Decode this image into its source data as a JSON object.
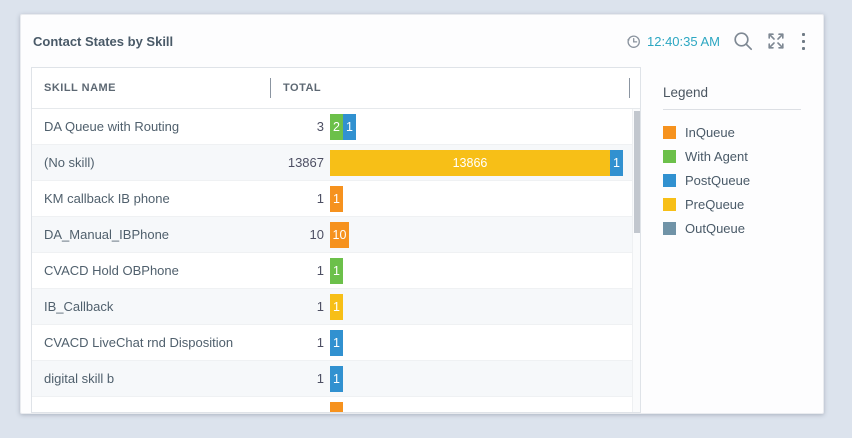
{
  "widget": {
    "title": "Contact States by Skill",
    "timestamp": "12:40:35 AM",
    "timestamp_color": "#2da7c2",
    "icons": {
      "clock": "clock-history-icon",
      "search": "search-icon",
      "expand": "fullscreen-icon",
      "menu": "kebab-menu-icon"
    }
  },
  "table": {
    "columns": [
      "SKILL NAME",
      "TOTAL"
    ],
    "rows": [
      {
        "skill": "DA Queue with Routing",
        "total": "3",
        "segments": [
          {
            "state": "With Agent",
            "value": "2"
          },
          {
            "state": "PostQueue",
            "value": "1"
          }
        ]
      },
      {
        "skill": "(No skill)",
        "total": "13867",
        "segments": [
          {
            "state": "PreQueue",
            "value": "13866"
          },
          {
            "state": "PostQueue",
            "value": "1"
          }
        ]
      },
      {
        "skill": "KM callback IB phone",
        "total": "1",
        "segments": [
          {
            "state": "InQueue",
            "value": "1"
          }
        ]
      },
      {
        "skill": "DA_Manual_IBPhone",
        "total": "10",
        "segments": [
          {
            "state": "InQueue",
            "value": "10"
          }
        ]
      },
      {
        "skill": "CVACD Hold OBPhone",
        "total": "1",
        "segments": [
          {
            "state": "With Agent",
            "value": "1"
          }
        ]
      },
      {
        "skill": "IB_Callback",
        "total": "1",
        "segments": [
          {
            "state": "PreQueue",
            "value": "1"
          }
        ]
      },
      {
        "skill": "CVACD LiveChat rnd Disposition",
        "total": "1",
        "segments": [
          {
            "state": "PostQueue",
            "value": "1"
          }
        ]
      },
      {
        "skill": "digital skill b",
        "total": "1",
        "segments": [
          {
            "state": "PostQueue",
            "value": "1"
          }
        ]
      },
      {
        "skill": "",
        "total": "",
        "segments": [
          {
            "state": "InQueue",
            "value": ""
          }
        ]
      }
    ]
  },
  "legend": {
    "title": "Legend",
    "items": [
      {
        "label": "InQueue",
        "color": "#f6921e"
      },
      {
        "label": "With Agent",
        "color": "#6cc04a"
      },
      {
        "label": "PostQueue",
        "color": "#3191d0"
      },
      {
        "label": "PreQueue",
        "color": "#f7bf17"
      },
      {
        "label": "OutQueue",
        "color": "#7093a7"
      }
    ]
  },
  "chart_data": {
    "type": "bar",
    "stacked": true,
    "title": "Contact States by Skill",
    "categories": [
      "DA Queue with Routing",
      "(No skill)",
      "KM callback IB phone",
      "DA_Manual_IBPhone",
      "CVACD Hold OBPhone",
      "IB_Callback",
      "CVACD LiveChat rnd Disposition",
      "digital skill b"
    ],
    "totals": [
      3,
      13867,
      1,
      10,
      1,
      1,
      1,
      1
    ],
    "series": [
      {
        "name": "InQueue",
        "values": [
          0,
          0,
          1,
          10,
          0,
          0,
          0,
          0
        ]
      },
      {
        "name": "With Agent",
        "values": [
          2,
          0,
          0,
          0,
          1,
          0,
          0,
          0
        ]
      },
      {
        "name": "PostQueue",
        "values": [
          1,
          1,
          0,
          0,
          0,
          0,
          1,
          1
        ]
      },
      {
        "name": "PreQueue",
        "values": [
          0,
          13866,
          0,
          0,
          0,
          1,
          0,
          0
        ]
      },
      {
        "name": "OutQueue",
        "values": [
          0,
          0,
          0,
          0,
          0,
          0,
          0,
          0
        ]
      }
    ],
    "xlim": [
      0,
      13867
    ],
    "legend_position": "right"
  }
}
